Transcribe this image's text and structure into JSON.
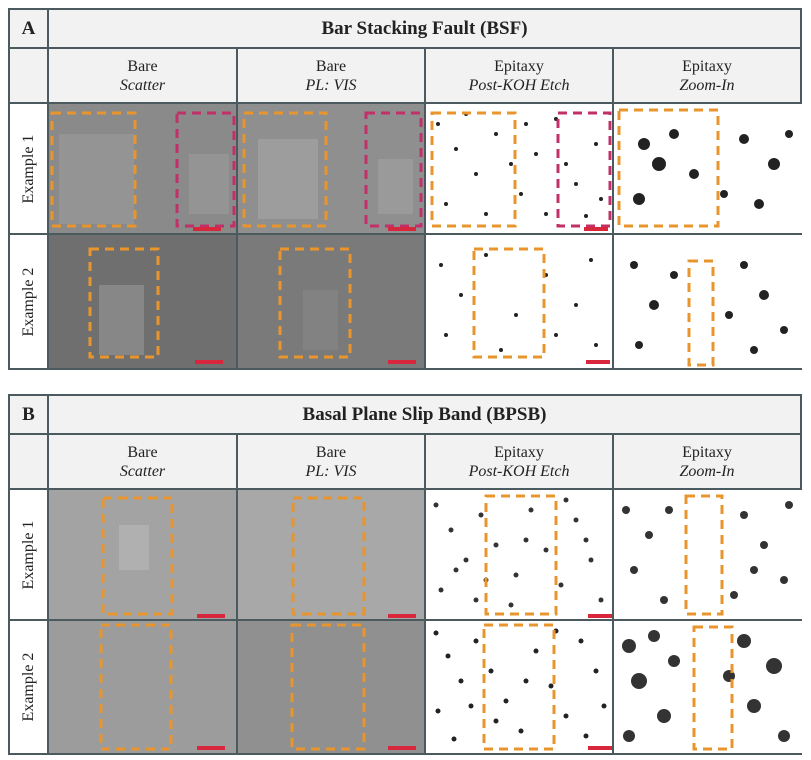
{
  "panels": [
    {
      "letter": "A",
      "title": "Bar Stacking Fault (BSF)",
      "columns": [
        {
          "main": "Bare",
          "sub": "Scatter"
        },
        {
          "main": "Bare",
          "sub": "PL: VIS"
        },
        {
          "main": "Epitaxy",
          "sub": "Post-KOH Etch"
        },
        {
          "main": "Epitaxy",
          "sub": "Zoom-In"
        }
      ],
      "rows": [
        "Example 1",
        "Example 2"
      ]
    },
    {
      "letter": "B",
      "title": "Basal Plane Slip Band (BPSB)",
      "columns": [
        {
          "main": "Bare",
          "sub": "Scatter"
        },
        {
          "main": "Bare",
          "sub": "PL: VIS"
        },
        {
          "main": "Epitaxy",
          "sub": "Post-KOH Etch"
        },
        {
          "main": "Epitaxy",
          "sub": "Zoom-In"
        }
      ],
      "rows": [
        "Example 1",
        "Example 2"
      ]
    }
  ],
  "colors": {
    "border": "#4a5a5e",
    "header_bg": "#f2f2f2",
    "highlight_orange": "#e8952e",
    "highlight_magenta": "#c2306a",
    "scale_bar_red": "#d8263c"
  }
}
